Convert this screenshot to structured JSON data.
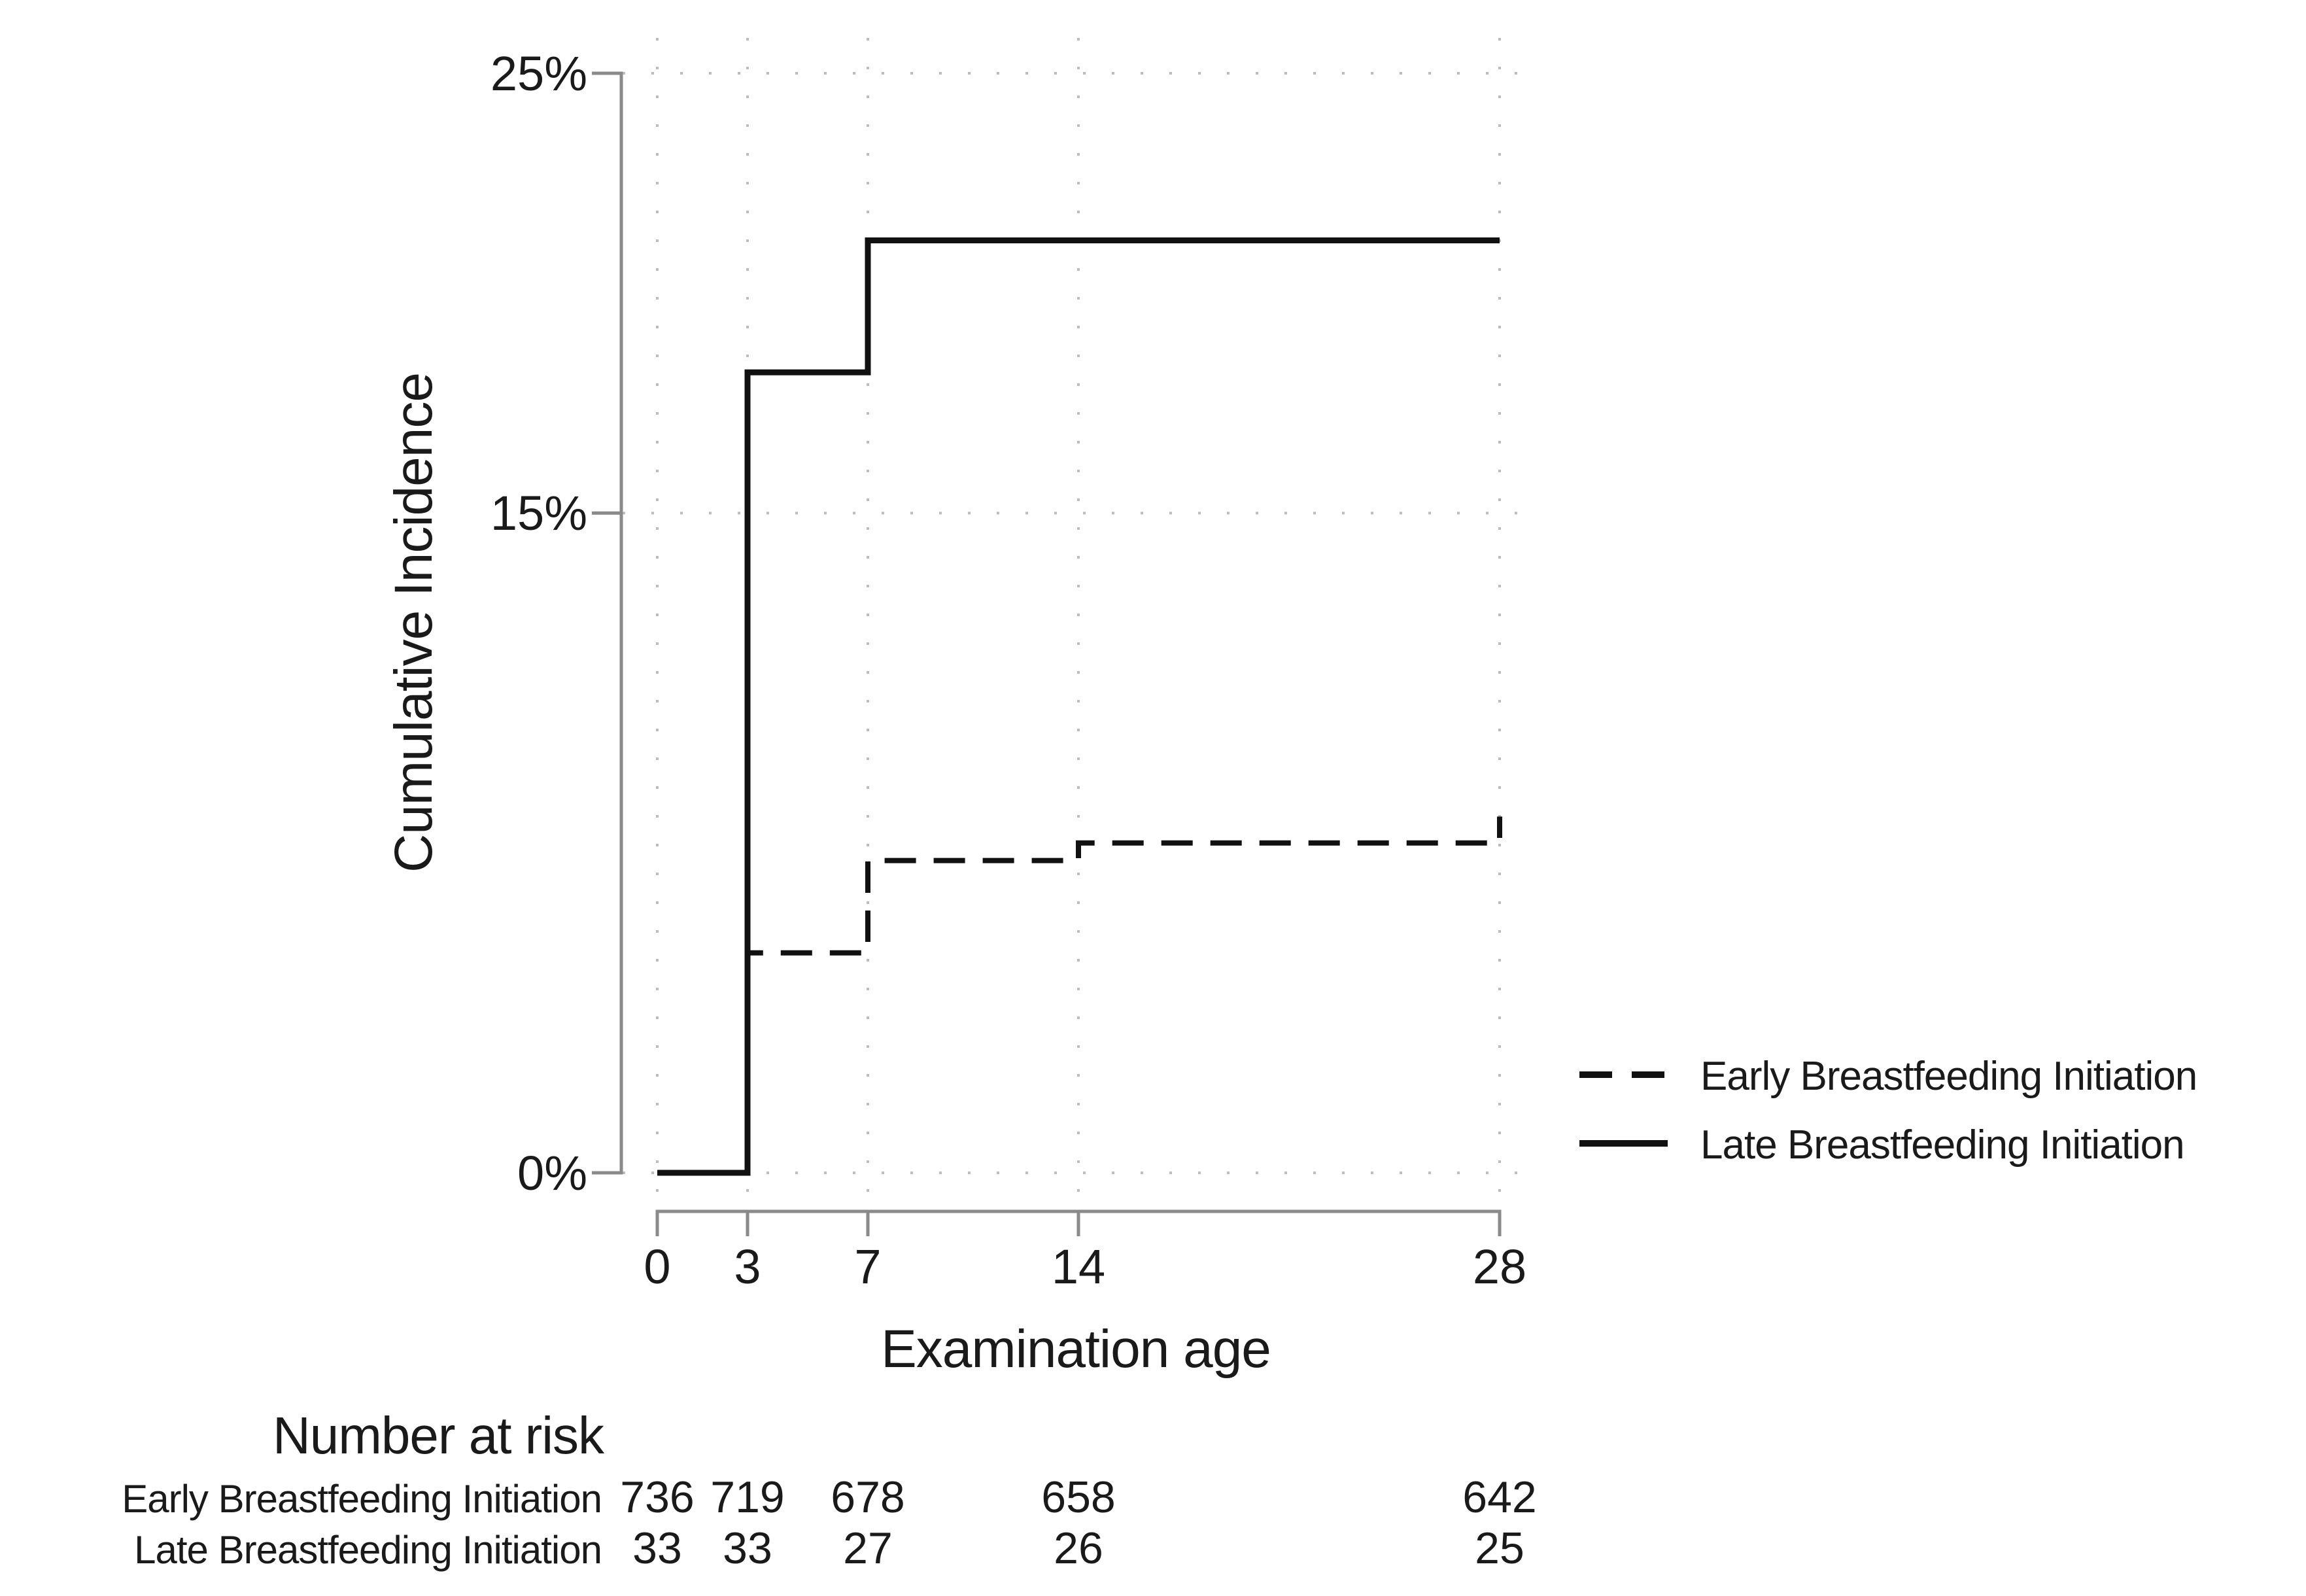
{
  "chart_data": {
    "type": "line",
    "subtype": "step-function-cumulative-incidence",
    "title": "",
    "xlabel": "Examination age",
    "ylabel": "Cumulative Incidence",
    "xlim": [
      0,
      28
    ],
    "ylim": [
      0,
      25
    ],
    "x_ticks": [
      0,
      3,
      7,
      14,
      28
    ],
    "x_tick_labels": [
      "0",
      "3",
      "7",
      "14",
      "28"
    ],
    "y_ticks": [
      0,
      15,
      25
    ],
    "y_tick_labels": [
      "0%",
      "15%",
      "25%"
    ],
    "grid": "dotted",
    "legend_position": "right-middle",
    "series": [
      {
        "name": "Early Breastfeeding Initiation",
        "line_style": "dashed",
        "color": "#111111",
        "steps": [
          [
            0,
            0
          ],
          [
            3,
            5.0
          ],
          [
            7,
            7.1
          ],
          [
            14,
            7.5
          ],
          [
            28,
            8.1
          ]
        ]
      },
      {
        "name": "Late Breastfeeding Initiation",
        "line_style": "solid",
        "color": "#111111",
        "steps": [
          [
            0,
            0
          ],
          [
            3,
            18.2
          ],
          [
            7,
            21.2
          ],
          [
            28,
            21.2
          ]
        ]
      }
    ],
    "risk_table": {
      "title": "Number at risk",
      "times": [
        0,
        3,
        7,
        14,
        28
      ],
      "rows": [
        {
          "label": "Early Breastfeeding Initiation",
          "values": [
            "736",
            "719",
            "678",
            "658",
            "642"
          ]
        },
        {
          "label": "Late Breastfeeding Initiation",
          "values": [
            "33",
            "33",
            "27",
            "26",
            "25"
          ]
        }
      ]
    }
  },
  "colors": {
    "background": "#ffffff",
    "axis": "#8a8a8a",
    "grid": "#bcbcbc",
    "line": "#111111",
    "text": "#1a1a1a"
  }
}
